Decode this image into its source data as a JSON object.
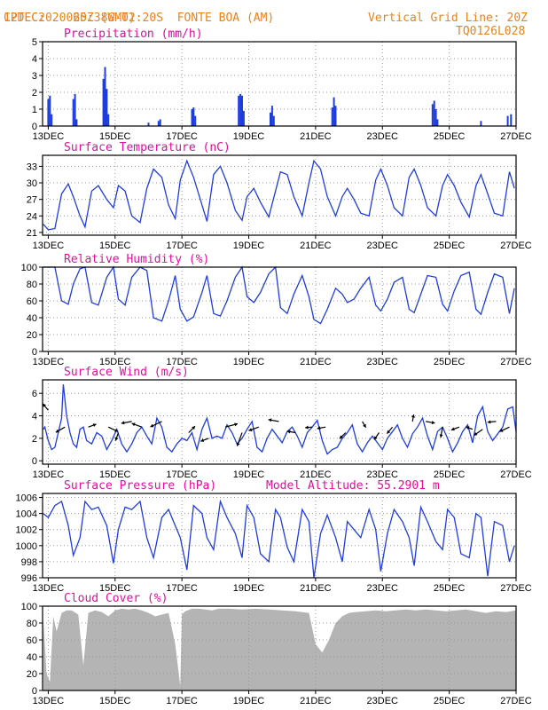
{
  "header": {
    "left_line1": "CPTEC:",
    "coords": "065:38W-02:20S",
    "station": "FONTE BOA (AM)",
    "left_line2": "12DEC2020 20Z (GMT)",
    "grid_line": "Vertical Grid Line: 20Z",
    "model_code": "TQ0126L028",
    "model_altitude": "Model Altitude: 55.2901 m"
  },
  "x_axis": {
    "ticks": [
      "13DEC",
      "15DEC",
      "17DEC",
      "19DEC",
      "21DEC",
      "23DEC",
      "25DEC",
      "27DEC"
    ],
    "tick_days": [
      13,
      15,
      17,
      19,
      21,
      23,
      25,
      27
    ],
    "range_days": [
      12.83,
      27.0
    ]
  },
  "colors": {
    "line": "#1f3ddb",
    "bar": "#1f3ddb",
    "cloud": "#b4b4b4",
    "title": "#e0109a",
    "header": "#e8821e",
    "grid": "#9a9a9a"
  },
  "chart_data": [
    {
      "id": "precipitation",
      "type": "bar",
      "title": "Precipitation (mm/h)",
      "ylim": [
        0,
        5
      ],
      "yticks": [
        0,
        1,
        2,
        3,
        4,
        5
      ],
      "x": [
        13.0,
        13.05,
        13.1,
        13.75,
        13.8,
        13.85,
        14.65,
        14.7,
        14.75,
        14.8,
        16.0,
        16.3,
        16.35,
        17.3,
        17.35,
        17.4,
        18.7,
        18.75,
        18.8,
        18.85,
        19.65,
        19.7,
        19.75,
        21.5,
        21.55,
        21.6,
        24.5,
        24.55,
        24.6,
        24.65,
        25.95,
        26.75,
        26.85
      ],
      "values": [
        1.6,
        1.8,
        0.7,
        1.6,
        1.9,
        0.4,
        2.8,
        3.5,
        2.2,
        0.7,
        0.2,
        0.3,
        0.4,
        1.0,
        1.1,
        0.6,
        1.8,
        1.9,
        1.8,
        0.9,
        0.8,
        1.2,
        0.6,
        1.1,
        1.7,
        1.2,
        1.3,
        1.5,
        1.0,
        0.4,
        0.3,
        0.6,
        0.7
      ]
    },
    {
      "id": "temperature",
      "type": "line",
      "title": "Surface Temperature (nC)",
      "ylim": [
        20.5,
        35
      ],
      "yticks": [
        21,
        24,
        27,
        30,
        33
      ],
      "x": [
        12.85,
        13.0,
        13.2,
        13.4,
        13.6,
        13.75,
        13.95,
        14.1,
        14.3,
        14.5,
        14.75,
        14.95,
        15.1,
        15.3,
        15.5,
        15.75,
        15.95,
        16.15,
        16.4,
        16.6,
        16.8,
        16.95,
        17.15,
        17.35,
        17.6,
        17.75,
        17.95,
        18.15,
        18.35,
        18.6,
        18.8,
        18.95,
        19.15,
        19.35,
        19.6,
        19.8,
        19.95,
        20.15,
        20.35,
        20.6,
        20.8,
        20.95,
        21.15,
        21.35,
        21.6,
        21.8,
        21.95,
        22.15,
        22.35,
        22.6,
        22.8,
        22.95,
        23.15,
        23.35,
        23.6,
        23.8,
        23.95,
        24.15,
        24.35,
        24.6,
        24.8,
        24.95,
        25.15,
        25.35,
        25.6,
        25.8,
        25.95,
        26.15,
        26.35,
        26.6,
        26.8,
        26.95
      ],
      "values": [
        22.5,
        21.5,
        21.7,
        28.0,
        29.8,
        27.5,
        24.0,
        22.0,
        28.5,
        29.5,
        27.0,
        25.5,
        29.5,
        28.5,
        24.0,
        22.8,
        29.0,
        32.5,
        31.0,
        26.0,
        23.5,
        30.5,
        34.0,
        31.0,
        26.0,
        23.0,
        31.5,
        33.0,
        30.0,
        25.0,
        23.2,
        27.5,
        29.0,
        26.5,
        23.8,
        28.5,
        32.0,
        31.5,
        27.5,
        24.0,
        30.0,
        34.0,
        32.5,
        27.5,
        24.0,
        27.5,
        29.0,
        27.0,
        24.5,
        24.0,
        30.5,
        32.5,
        29.5,
        25.5,
        24.0,
        31.0,
        32.5,
        29.5,
        25.5,
        24.0,
        29.5,
        31.5,
        29.5,
        26.5,
        23.8,
        29.5,
        31.5,
        28.0,
        24.5,
        24.0,
        32.0,
        29.0
      ]
    },
    {
      "id": "humidity",
      "type": "line",
      "title": "Relative Humidity (%)",
      "ylim": [
        0,
        100
      ],
      "yticks": [
        0,
        20,
        40,
        60,
        80,
        100
      ],
      "x": [
        12.85,
        13.0,
        13.2,
        13.4,
        13.6,
        13.75,
        13.95,
        14.1,
        14.3,
        14.5,
        14.75,
        14.95,
        15.1,
        15.3,
        15.5,
        15.75,
        15.95,
        16.15,
        16.4,
        16.6,
        16.8,
        16.95,
        17.15,
        17.35,
        17.6,
        17.75,
        17.95,
        18.15,
        18.35,
        18.6,
        18.8,
        18.95,
        19.15,
        19.35,
        19.6,
        19.8,
        19.95,
        20.15,
        20.35,
        20.6,
        20.8,
        20.95,
        21.15,
        21.35,
        21.6,
        21.8,
        21.95,
        22.15,
        22.35,
        22.6,
        22.8,
        22.95,
        23.15,
        23.35,
        23.6,
        23.8,
        23.95,
        24.15,
        24.35,
        24.6,
        24.8,
        24.95,
        25.15,
        25.35,
        25.6,
        25.8,
        25.95,
        26.15,
        26.35,
        26.6,
        26.8,
        26.95
      ],
      "values": [
        100,
        100,
        100,
        60,
        56,
        80,
        98,
        100,
        58,
        55,
        88,
        100,
        62,
        55,
        88,
        100,
        96,
        40,
        36,
        60,
        90,
        50,
        36,
        41,
        70,
        90,
        45,
        42,
        60,
        88,
        100,
        65,
        58,
        70,
        92,
        100,
        52,
        45,
        68,
        90,
        65,
        38,
        33,
        50,
        75,
        68,
        58,
        62,
        75,
        88,
        55,
        48,
        62,
        82,
        88,
        50,
        46,
        68,
        90,
        88,
        56,
        48,
        72,
        90,
        94,
        50,
        44,
        70,
        92,
        88,
        45,
        75
      ]
    },
    {
      "id": "wind",
      "type": "line",
      "title": "Surface Wind (m/s)",
      "ylim": [
        -0.3,
        7.2
      ],
      "yticks": [
        0,
        2,
        4,
        6
      ],
      "x": [
        12.85,
        12.9,
        13.0,
        13.1,
        13.2,
        13.3,
        13.4,
        13.45,
        13.55,
        13.65,
        13.75,
        13.85,
        13.95,
        14.05,
        14.15,
        14.3,
        14.45,
        14.6,
        14.75,
        14.9,
        15.05,
        15.2,
        15.35,
        15.5,
        15.65,
        15.8,
        15.95,
        16.1,
        16.25,
        16.4,
        16.55,
        16.7,
        16.85,
        17.0,
        17.15,
        17.3,
        17.45,
        17.6,
        17.75,
        17.9,
        18.05,
        18.2,
        18.35,
        18.5,
        18.65,
        18.8,
        18.95,
        19.1,
        19.25,
        19.4,
        19.55,
        19.7,
        19.85,
        20.0,
        20.15,
        20.3,
        20.45,
        20.6,
        20.75,
        20.9,
        21.05,
        21.2,
        21.35,
        21.5,
        21.65,
        21.8,
        21.95,
        22.1,
        22.25,
        22.4,
        22.55,
        22.7,
        22.85,
        23.0,
        23.15,
        23.3,
        23.45,
        23.6,
        23.75,
        23.9,
        24.05,
        24.2,
        24.35,
        24.5,
        24.65,
        24.8,
        24.95,
        25.1,
        25.25,
        25.4,
        25.55,
        25.7,
        25.85,
        26.0,
        26.15,
        26.3,
        26.45,
        26.6,
        26.75,
        26.9,
        27.0
      ],
      "values": [
        2.8,
        3.0,
        1.8,
        1.0,
        1.2,
        2.5,
        3.8,
        6.8,
        4.0,
        2.5,
        1.5,
        1.2,
        2.8,
        3.0,
        1.8,
        1.5,
        2.5,
        2.2,
        1.0,
        1.8,
        2.8,
        1.5,
        0.8,
        1.5,
        2.5,
        3.0,
        2.2,
        1.5,
        3.8,
        3.0,
        1.2,
        0.8,
        1.5,
        2.0,
        1.8,
        2.5,
        1.0,
        2.8,
        3.8,
        2.0,
        2.2,
        2.0,
        3.2,
        2.5,
        1.5,
        2.0,
        2.8,
        3.5,
        1.2,
        0.8,
        2.0,
        2.8,
        2.2,
        1.6,
        2.6,
        3.0,
        2.2,
        1.2,
        2.5,
        3.0,
        3.6,
        1.8,
        0.6,
        1.0,
        1.2,
        2.0,
        2.5,
        3.2,
        1.5,
        0.8,
        1.6,
        2.2,
        1.6,
        1.0,
        2.0,
        2.6,
        3.2,
        2.0,
        1.2,
        2.4,
        3.0,
        3.8,
        2.2,
        1.0,
        2.6,
        3.0,
        2.0,
        0.8,
        1.6,
        2.6,
        3.2,
        1.6,
        4.0,
        4.8,
        2.6,
        1.8,
        2.4,
        3.0,
        4.6,
        4.8,
        2.6
      ]
    },
    {
      "id": "pressure",
      "type": "line",
      "title": "Surface Pressure (hPa)",
      "ylim": [
        996,
        1006.5
      ],
      "yticks": [
        996,
        998,
        1000,
        1002,
        1004,
        1006
      ],
      "x": [
        12.85,
        13.0,
        13.2,
        13.4,
        13.6,
        13.75,
        13.95,
        14.1,
        14.3,
        14.5,
        14.75,
        14.95,
        15.1,
        15.3,
        15.5,
        15.75,
        15.95,
        16.15,
        16.4,
        16.6,
        16.8,
        16.95,
        17.15,
        17.35,
        17.6,
        17.75,
        17.95,
        18.15,
        18.35,
        18.6,
        18.8,
        18.95,
        19.15,
        19.35,
        19.6,
        19.8,
        19.95,
        20.15,
        20.35,
        20.6,
        20.8,
        20.95,
        21.15,
        21.35,
        21.6,
        21.8,
        21.95,
        22.15,
        22.35,
        22.6,
        22.8,
        22.95,
        23.15,
        23.35,
        23.6,
        23.8,
        23.95,
        24.15,
        24.35,
        24.6,
        24.8,
        24.95,
        25.15,
        25.35,
        25.6,
        25.8,
        25.95,
        26.15,
        26.35,
        26.6,
        26.8,
        26.95
      ],
      "values": [
        1004.0,
        1003.5,
        1005.0,
        1005.5,
        1002.5,
        998.8,
        1001.0,
        1005.5,
        1004.5,
        1004.8,
        1002.5,
        997.8,
        1002.0,
        1004.8,
        1004.5,
        1005.5,
        1001.0,
        998.5,
        1003.5,
        1004.5,
        1002.5,
        1001.0,
        997.0,
        1005.0,
        1004.0,
        1001.0,
        999.5,
        1005.5,
        1003.5,
        1001.5,
        998.5,
        1005.0,
        1003.5,
        999.0,
        998.0,
        1004.5,
        1003.5,
        999.8,
        998.0,
        1004.5,
        1003.0,
        996.0,
        1001.5,
        1003.8,
        1001.0,
        998.0,
        1003.0,
        1002.0,
        1001.0,
        1004.5,
        1002.0,
        996.8,
        1001.5,
        1004.5,
        1003.0,
        1001.0,
        997.5,
        1004.8,
        1003.0,
        1000.5,
        999.5,
        1004.5,
        1003.5,
        999.0,
        998.5,
        1004.0,
        1003.5,
        996.2,
        1003.0,
        1002.5,
        998.0,
        1000.0
      ]
    },
    {
      "id": "cloud",
      "type": "area",
      "title": "Cloud Cover (%)",
      "ylim": [
        0,
        100
      ],
      "yticks": [
        0,
        20,
        40,
        60,
        80,
        100
      ],
      "x": [
        12.85,
        12.95,
        13.05,
        13.15,
        13.25,
        13.4,
        13.55,
        13.7,
        13.9,
        14.05,
        14.2,
        14.4,
        14.6,
        14.8,
        15.0,
        15.2,
        15.4,
        15.6,
        15.8,
        16.0,
        16.2,
        16.4,
        16.6,
        16.8,
        16.95,
        17.0,
        17.1,
        17.3,
        17.5,
        17.7,
        17.9,
        18.1,
        18.4,
        18.8,
        19.2,
        19.6,
        20.0,
        20.4,
        20.8,
        21.0,
        21.2,
        21.4,
        21.6,
        21.8,
        22.0,
        22.2,
        22.5,
        22.8,
        23.1,
        23.4,
        23.7,
        24.0,
        24.3,
        24.6,
        24.9,
        25.2,
        25.5,
        25.8,
        26.1,
        26.4,
        26.7,
        27.0
      ],
      "values": [
        88,
        20,
        10,
        88,
        70,
        92,
        95,
        95,
        90,
        30,
        92,
        95,
        93,
        88,
        95,
        97,
        96,
        97,
        95,
        92,
        88,
        90,
        92,
        55,
        5,
        90,
        94,
        97,
        97,
        96,
        95,
        97,
        97,
        96,
        97,
        96,
        95,
        94,
        92,
        55,
        45,
        60,
        80,
        88,
        92,
        93,
        94,
        95,
        94,
        95,
        96,
        95,
        96,
        95,
        94,
        95,
        96,
        94,
        92,
        94,
        93,
        95
      ]
    },
    {
      "id": "wind_vectors",
      "type": "scatter",
      "title": "",
      "x": [
        13.0,
        13.5,
        14.2,
        14.8,
        15.1,
        15.5,
        15.8,
        16.4,
        17.2,
        17.8,
        18.3,
        18.8,
        19.3,
        19.9,
        20.4,
        20.9,
        21.3,
        21.9,
        22.4,
        22.9,
        23.3,
        23.9,
        24.3,
        24.8,
        25.3,
        25.7,
        26.0,
        26.4,
        26.8
      ],
      "values": [
        4.5,
        3.0,
        3.0,
        3.0,
        2.5,
        3.5,
        3.0,
        3.5,
        2.5,
        2.0,
        3.0,
        2.5,
        3.0,
        3.5,
        2.5,
        3.0,
        3.0,
        2.5,
        3.5,
        2.5,
        3.0,
        3.5,
        3.5,
        3.0,
        3.0,
        2.8,
        2.8,
        3.5,
        3.0
      ],
      "dir_deg": [
        130,
        210,
        20,
        335,
        250,
        190,
        160,
        205,
        45,
        200,
        15,
        250,
        200,
        170,
        170,
        185,
        190,
        225,
        300,
        235,
        230,
        80,
        350,
        260,
        200,
        160,
        215,
        185,
        205
      ],
      "mag": [
        1.2,
        1.5,
        1.2,
        1.5,
        1.2,
        1.5,
        1.5,
        1.8,
        1.3,
        1.2,
        1.8,
        2.0,
        1.5,
        1.5,
        1.2,
        1.0,
        1.2,
        1.2,
        1.0,
        1.2,
        1.2,
        1.0,
        1.3,
        1.5,
        1.2,
        1.0,
        1.5,
        1.2,
        1.5
      ]
    }
  ]
}
